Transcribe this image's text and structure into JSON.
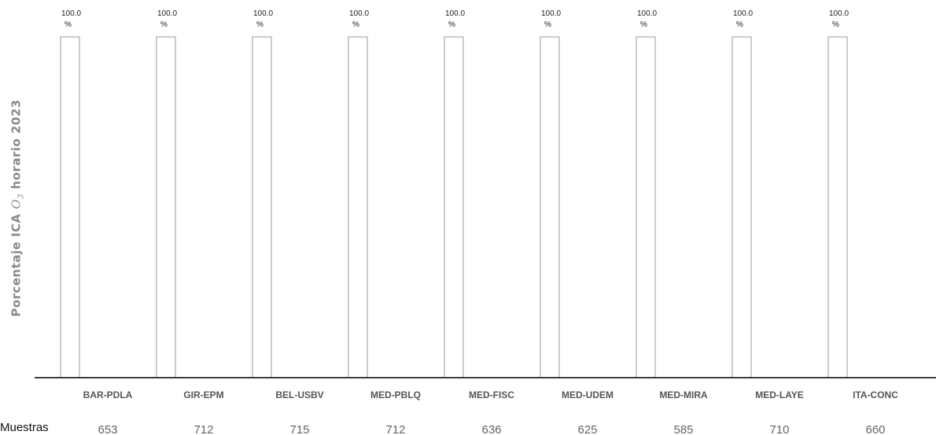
{
  "chart_data": {
    "type": "bar",
    "ylabel_prefix": "Porcentaje ICA ",
    "ylabel_math": "O",
    "ylabel_sub": "3",
    "ylabel_suffix": " horario 2023",
    "categories": [
      "BAR-PDLA",
      "GIR-EPM",
      "BEL-USBV",
      "MED-PBLQ",
      "MED-FISC",
      "MED-UDEM",
      "MED-MIRA",
      "MED-LAYE",
      "ITA-CONC"
    ],
    "values": [
      100.0,
      100.0,
      100.0,
      100.0,
      100.0,
      100.0,
      100.0,
      100.0,
      100.0
    ],
    "value_labels": [
      "100.0 %",
      "100.0 %",
      "100.0 %",
      "100.0 %",
      "100.0 %",
      "100.0 %",
      "100.0 %",
      "100.0 %",
      "100.0 %"
    ],
    "ylim": [
      0,
      100
    ],
    "bar_fill": "#ffffff",
    "bar_stroke": "#9a9a9a",
    "axis_color": "#000000",
    "grid": false,
    "samples_label": "Muestras",
    "samples": [
      653,
      712,
      715,
      712,
      636,
      625,
      585,
      710,
      660
    ]
  }
}
